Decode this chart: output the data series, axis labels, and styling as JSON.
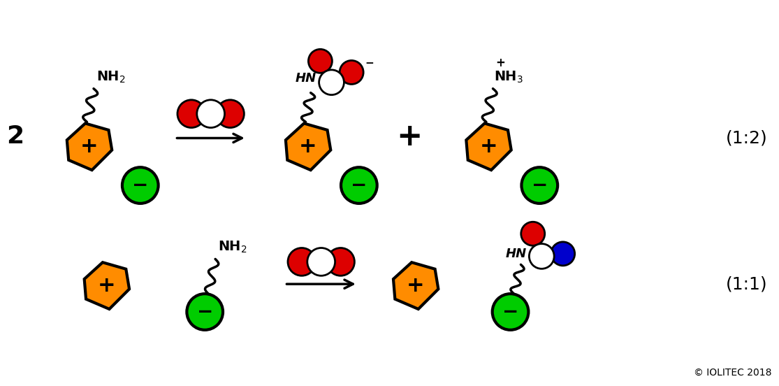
{
  "background_color": "#ffffff",
  "orange_color": "#FF8C00",
  "green_color": "#00CC00",
  "red_color": "#DD0000",
  "white_color": "#FFFFFF",
  "blue_color": "#0000CC",
  "black_color": "#000000",
  "copyright_text": "© IOLITEC 2018",
  "ratio_12": "(1:2)",
  "ratio_11": "(1:1)",
  "fig_width": 11.15,
  "fig_height": 5.52,
  "dpi": 100
}
